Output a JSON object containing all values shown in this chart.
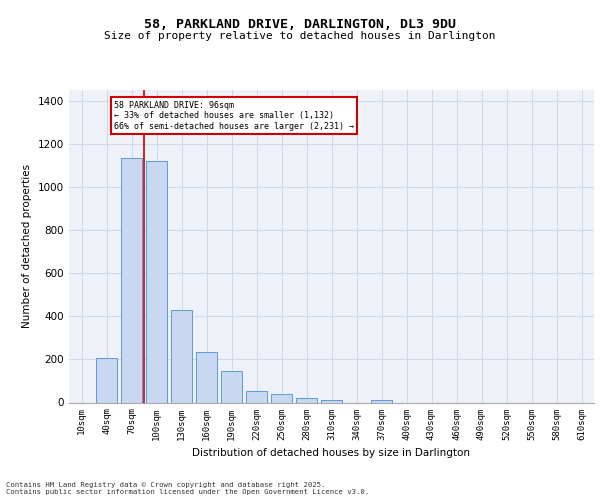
{
  "title1": "58, PARKLAND DRIVE, DARLINGTON, DL3 9DU",
  "title2": "Size of property relative to detached houses in Darlington",
  "xlabel": "Distribution of detached houses by size in Darlington",
  "ylabel": "Number of detached properties",
  "categories": [
    "10sqm",
    "40sqm",
    "70sqm",
    "100sqm",
    "130sqm",
    "160sqm",
    "190sqm",
    "220sqm",
    "250sqm",
    "280sqm",
    "310sqm",
    "340sqm",
    "370sqm",
    "400sqm",
    "430sqm",
    "460sqm",
    "490sqm",
    "520sqm",
    "550sqm",
    "580sqm",
    "610sqm"
  ],
  "bar_heights": [
    0,
    207,
    1135,
    1120,
    430,
    235,
    148,
    55,
    38,
    22,
    12,
    0,
    10,
    0,
    0,
    0,
    0,
    0,
    0,
    0,
    0
  ],
  "bar_color": "#c8d8f0",
  "bar_edge_color": "#5b9bd5",
  "grid_color": "#d0d8e8",
  "background_color": "#eef2f8",
  "annotation_box_color": "#cc0000",
  "vline_color": "#cc0000",
  "vline_x": 2.5,
  "annotation_title": "58 PARKLAND DRIVE: 96sqm",
  "annotation_line1": "← 33% of detached houses are smaller (1,132)",
  "annotation_line2": "66% of semi-detached houses are larger (2,231) →",
  "footer1": "Contains HM Land Registry data © Crown copyright and database right 2025.",
  "footer2": "Contains public sector information licensed under the Open Government Licence v3.0.",
  "ylim": [
    0,
    1450
  ],
  "yticks": [
    0,
    200,
    400,
    600,
    800,
    1000,
    1200,
    1400
  ]
}
